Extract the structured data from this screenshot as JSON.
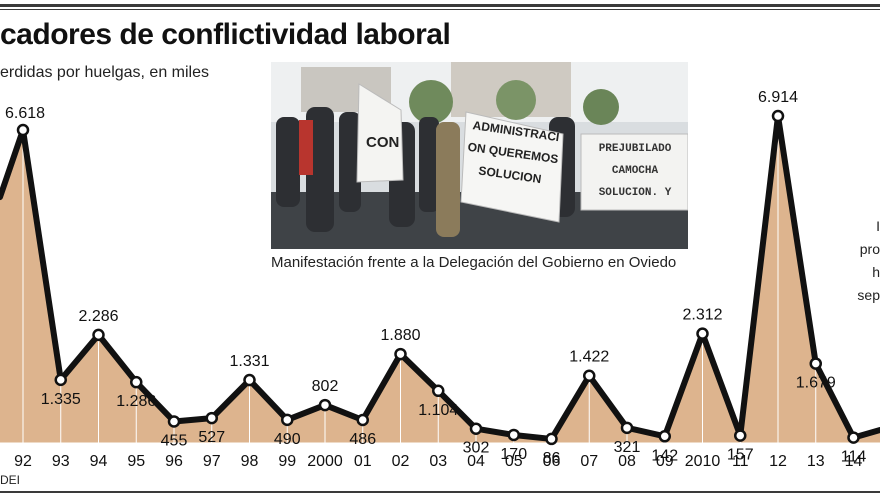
{
  "header": {
    "title": "cadores de conflictividad laboral",
    "subtitle": "erdidas por huelgas, en miles"
  },
  "photo": {
    "caption": "Manifestación frente a la Delegación del Gobierno en Oviedo",
    "banner_text_1": "CON",
    "banner_text_2": "ADMINISTRACION QUEREMOS SOLUCION",
    "banner_text_3": "PREJUBILADO CAMOCHA SOLUCION. Y"
  },
  "side_note": {
    "lines": [
      "I",
      "pro",
      "h",
      "sep"
    ]
  },
  "source": "DEI",
  "colors": {
    "area_fill": "#ddb48e",
    "line": "#111111",
    "marker_fill": "#ffffff",
    "rule": "#3a3a3a"
  },
  "chart_data": {
    "type": "area",
    "title": "cadores de conflictividad laboral",
    "ylabel": "erdidas por huelgas, en miles",
    "categories": [
      "92",
      "93",
      "94",
      "95",
      "96",
      "97",
      "98",
      "99",
      "2000",
      "01",
      "02",
      "03",
      "04",
      "05",
      "06",
      "07",
      "08",
      "09",
      "2010",
      "11",
      "12",
      "13",
      "14"
    ],
    "series": [
      {
        "values": [
          6618,
          1335,
          2286,
          1286,
          455,
          527,
          1331,
          490,
          802,
          486,
          1880,
          1104,
          302,
          170,
          86,
          1422,
          321,
          142,
          2312,
          157,
          6914,
          1679,
          114
        ]
      }
    ],
    "data_labels": [
      "6.618",
      "1.335",
      "2.286",
      "1.286",
      "455",
      "527",
      "1.331",
      "490",
      "802",
      "486",
      "1.880",
      "1.104",
      "302",
      "170",
      "86",
      "1.422",
      "321",
      "142",
      "2.312",
      "157",
      "6.914",
      "1.679",
      "114"
    ],
    "ylim": [
      0,
      7000
    ],
    "grid": false,
    "legend": "none"
  }
}
